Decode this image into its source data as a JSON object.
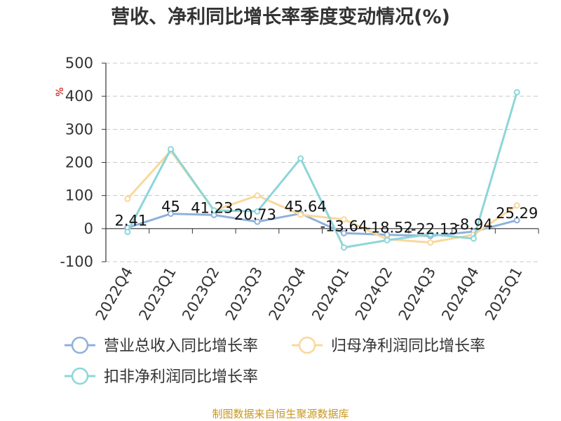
{
  "chart_data": {
    "type": "line",
    "title": "营收、净利同比增长率季度变动情况(%)",
    "ylabel": "%",
    "categories": [
      "2022Q4",
      "2023Q1",
      "2023Q2",
      "2023Q3",
      "2023Q4",
      "2024Q1",
      "2024Q2",
      "2024Q3",
      "2024Q4",
      "2025Q1"
    ],
    "ylim": [
      -100,
      500
    ],
    "yticks": [
      500,
      400,
      300,
      200,
      100,
      0,
      -100
    ],
    "grid": true,
    "legend_position": "bottom",
    "series": [
      {
        "name": "营业总收入同比增长率",
        "color": "#8fb0dc",
        "values": [
          2.41,
          45,
          41.23,
          20.73,
          45.64,
          -13.64,
          -18.52,
          -22.13,
          -8.94,
          25.29
        ],
        "labels": [
          "2.41",
          "45",
          "41.23",
          "20.73",
          "45.64",
          "-13.64",
          "-18.52",
          "-22.13",
          "-8.94",
          "25.29"
        ]
      },
      {
        "name": "归母净利润同比增长率",
        "color": "#f9d89a",
        "values": [
          90,
          235,
          55,
          100,
          42,
          28,
          -32,
          -42,
          -18,
          70
        ]
      },
      {
        "name": "扣非净利润同比增长率",
        "color": "#8dd6d8",
        "values": [
          -10,
          240,
          55,
          52,
          212,
          -57,
          -35,
          -17,
          -30,
          412
        ]
      }
    ]
  },
  "source": "制图数据来自恒生聚源数据库"
}
